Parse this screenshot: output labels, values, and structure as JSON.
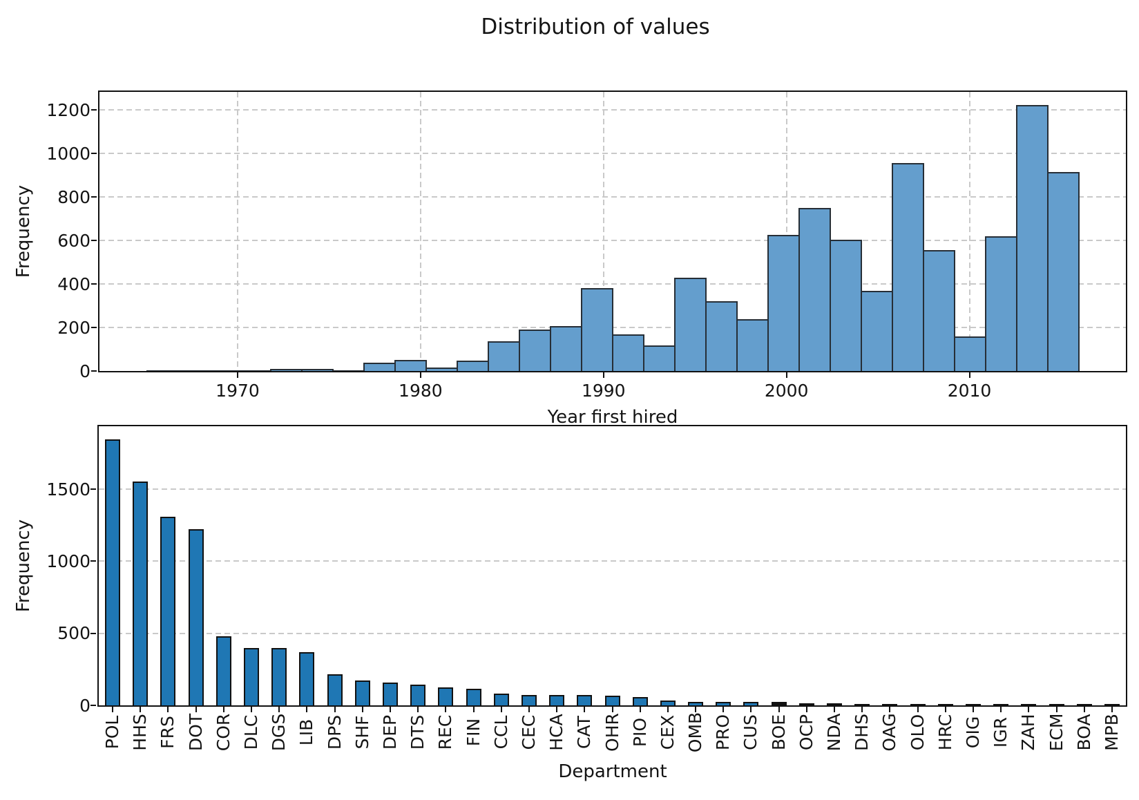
{
  "figure": {
    "title": "Distribution of values"
  },
  "chart_data": [
    {
      "type": "bar",
      "subtype": "histogram",
      "xlabel": "Year first hired",
      "ylabel": "Frequency",
      "bin_start": 1965.0,
      "bin_width": 1.7,
      "n_bins": 30,
      "values": [
        1,
        3,
        1,
        2,
        10,
        10,
        2,
        37,
        52,
        15,
        48,
        138,
        192,
        205,
        380,
        168,
        118,
        428,
        322,
        237,
        627,
        749,
        603,
        369,
        955,
        555,
        158,
        618,
        1222,
        916
      ],
      "xticks": [
        1970,
        1980,
        1990,
        2000,
        2010
      ],
      "yticks": [
        0,
        200,
        400,
        600,
        800,
        1000,
        1200
      ],
      "xlim": [
        1962.45,
        2018.55
      ],
      "ylim": [
        0,
        1283
      ],
      "grid": true,
      "legend": false,
      "bar_fill": "#649ECD",
      "bar_edge": "#262E36"
    },
    {
      "type": "bar",
      "xlabel": "Department",
      "ylabel": "Frequency",
      "categories": [
        "POL",
        "HHS",
        "FRS",
        "DOT",
        "COR",
        "DLC",
        "DGS",
        "LIB",
        "DPS",
        "SHF",
        "DEP",
        "DTS",
        "REC",
        "FIN",
        "CCL",
        "CEC",
        "HCA",
        "CAT",
        "OHR",
        "PIO",
        "CEX",
        "OMB",
        "PRO",
        "CUS",
        "BOE",
        "OCP",
        "NDA",
        "DHS",
        "OAG",
        "OLO",
        "HRC",
        "OIG",
        "IGR",
        "ZAH",
        "ECM",
        "BOA",
        "MPB"
      ],
      "values": [
        1845,
        1554,
        1308,
        1222,
        478,
        400,
        397,
        369,
        218,
        174,
        158,
        145,
        125,
        114,
        82,
        72,
        71,
        70,
        66,
        56,
        32,
        26,
        25,
        24,
        23,
        14,
        13,
        9,
        8,
        6,
        5,
        4,
        3,
        3,
        2,
        1,
        1
      ],
      "yticks": [
        0,
        500,
        1000,
        1500
      ],
      "ylim": [
        0,
        1937
      ],
      "grid": true,
      "legend": false,
      "bar_fill": "#1F77B4",
      "bar_edge": "#111111"
    }
  ]
}
